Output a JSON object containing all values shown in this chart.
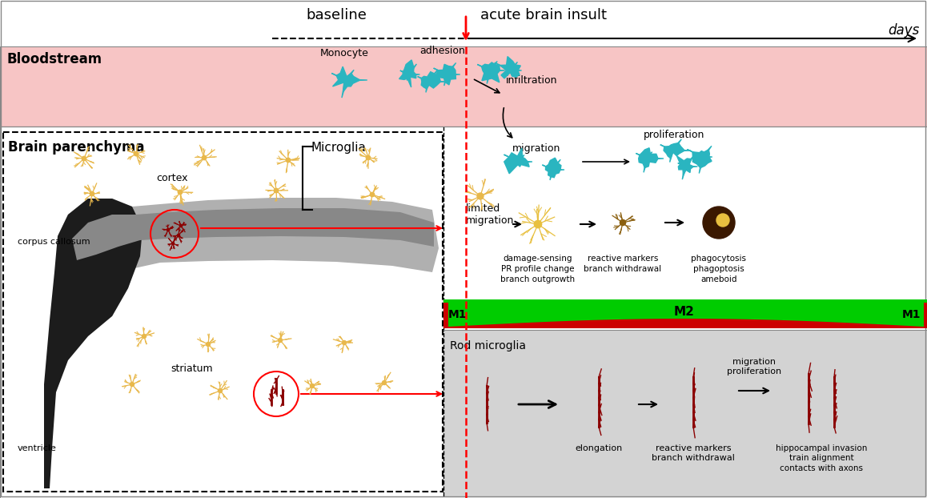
{
  "bg_color": "#ffffff",
  "bloodstream_color": "#f7c5c5",
  "rod_microglia_bg": "#d3d3d3",
  "m1_color": "#cc0000",
  "m2_color": "#00cc00",
  "microglia_color": "#e8b84b",
  "rod_microglia_color": "#8b0000",
  "monocyte_color": "#2ab5c0",
  "title_top": "baseline",
  "title_acute": "acute brain insult",
  "title_days": "days",
  "label_bloodstream": "Bloodstream",
  "label_brain": "Brain parenchyma",
  "label_monocyte": "Monocyte",
  "label_adhesion": "adhesion",
  "label_infiltration": "infiltration",
  "label_migration": "migration",
  "label_proliferation": "proliferation",
  "label_microglia": "Microglia",
  "label_limited_migration": "limited\nmigration",
  "label_damage_sensing": "damage-sensing\nPR profile change\nbranch outgrowth",
  "label_reactive_markers": "reactive markers\nbranch withdrawal",
  "label_phagocytosis": "phagocytosis\nphagoptosis\nameboid",
  "label_m1": "M1",
  "label_m2": "M2",
  "label_rod": "Rod microglia",
  "label_elongation": "elongation",
  "label_reactive_rod": "reactive markers\nbranch withdrawal",
  "label_migration_prolif": "migration\nproliferation",
  "label_hippocampal": "hippocampal invasion\ntrain alignment\ncontacts with axons",
  "label_corpus_callosum": "corpus callosum",
  "label_cortex": "cortex",
  "label_striatum": "striatum",
  "label_ventricle": "ventricle"
}
